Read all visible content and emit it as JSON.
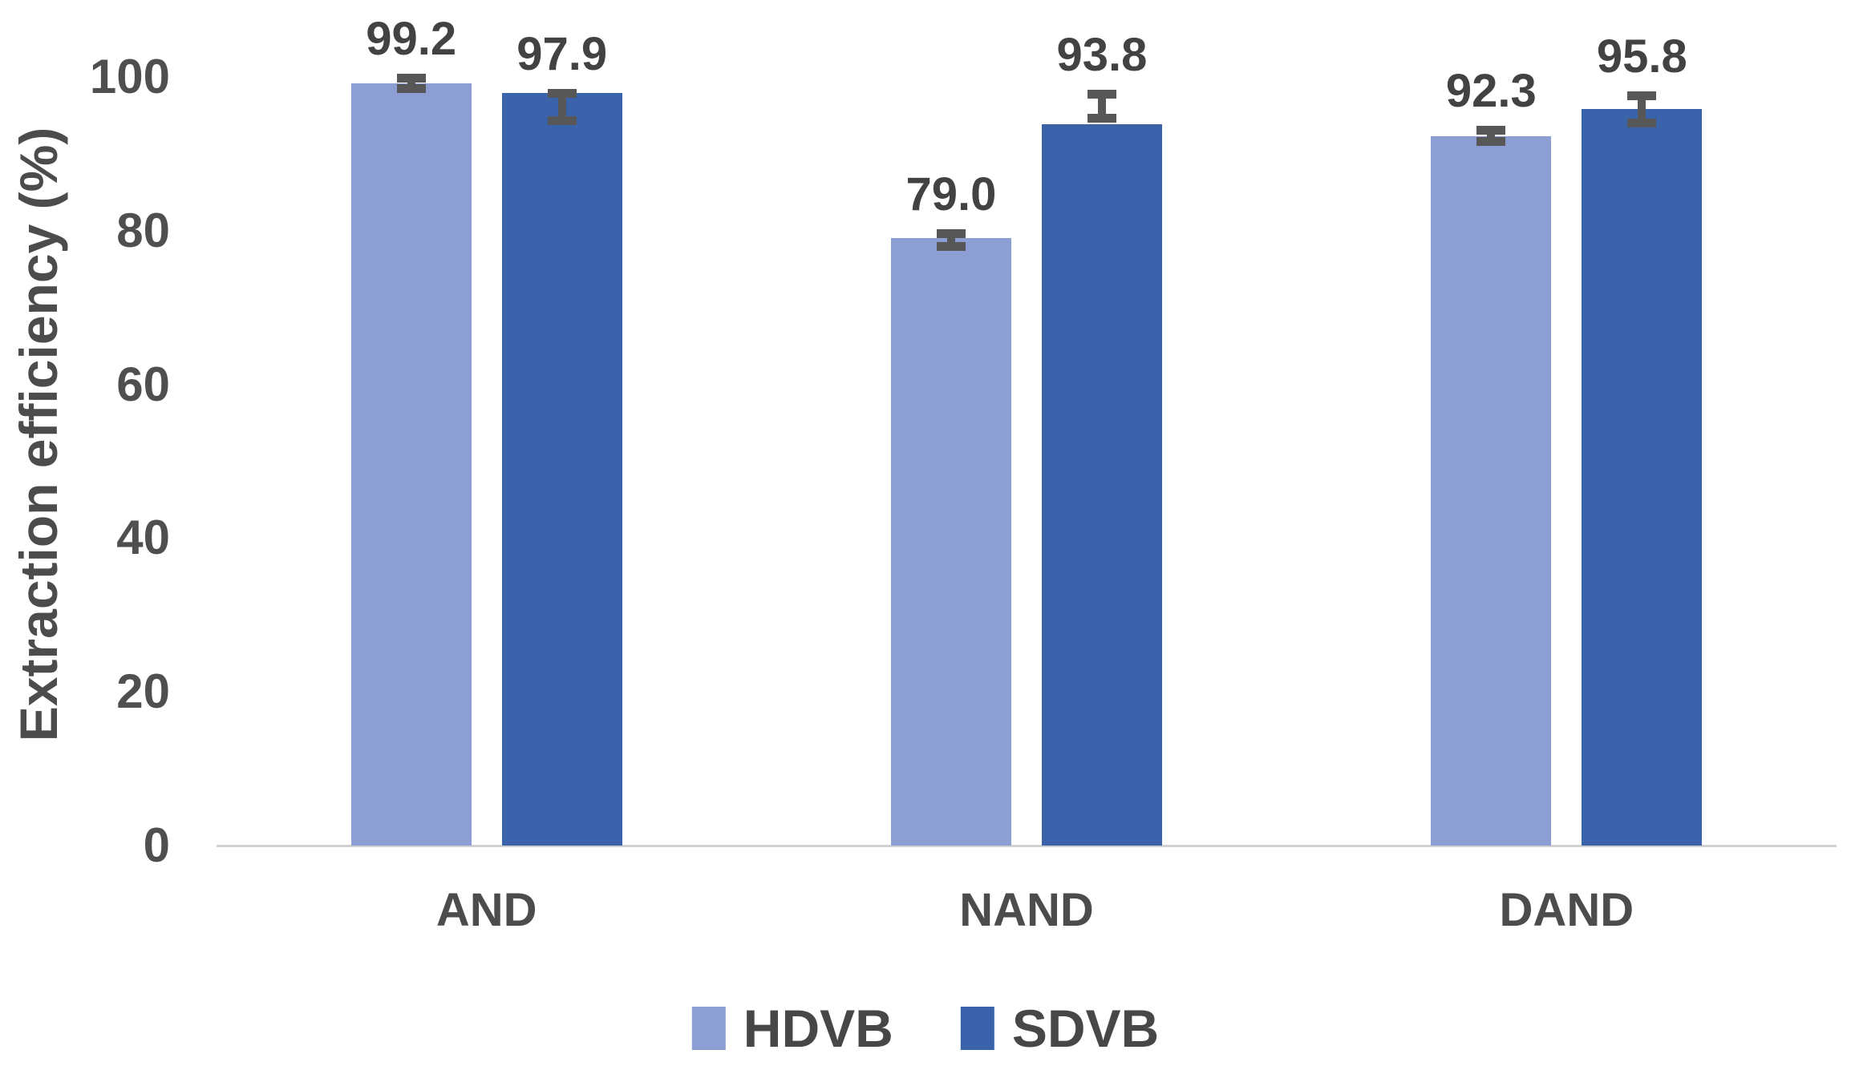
{
  "chart_data": {
    "type": "bar",
    "title": "",
    "xlabel": "",
    "ylabel": "Extraction efficiency (%)",
    "categories": [
      "AND",
      "NAND",
      "DAND"
    ],
    "series": [
      {
        "name": "HDVB",
        "color": "#8D9ED5",
        "values": [
          99.2,
          79.0,
          92.3
        ],
        "data_labels": [
          "99.2",
          "79.0",
          "92.3"
        ],
        "error_bars": [
          {
            "top": 100.4,
            "bottom": 97.9
          },
          {
            "top": 80.2,
            "bottom": 77.4
          },
          {
            "top": 93.6,
            "bottom": 91.0
          }
        ]
      },
      {
        "name": "SDVB",
        "color": "#3A63AC",
        "values": [
          97.9,
          93.8,
          95.8
        ],
        "data_labels": [
          "97.9",
          "93.8",
          "95.8"
        ],
        "error_bars": [
          {
            "top": 98.4,
            "bottom": 93.7
          },
          {
            "top": 98.3,
            "bottom": 94.0
          },
          {
            "top": 98.1,
            "bottom": 93.4
          }
        ]
      }
    ],
    "yticks": [
      0,
      20,
      40,
      60,
      80,
      100
    ],
    "ytick_labels": [
      "0",
      "20",
      "40",
      "60",
      "80",
      "100"
    ],
    "ylim": [
      0,
      110
    ],
    "grid": false,
    "legend_position": "bottom",
    "colors": {
      "error_bar": "#575757",
      "axis_line": "#D2D2D2",
      "text": "#4C4C4C"
    }
  }
}
